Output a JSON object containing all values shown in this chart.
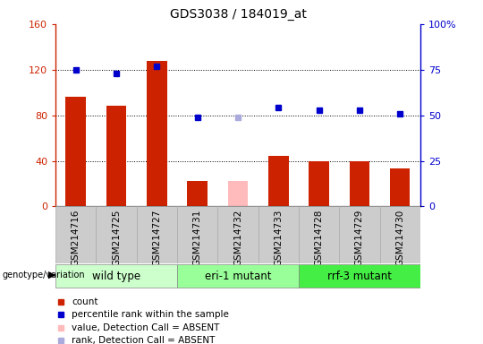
{
  "title": "GDS3038 / 184019_at",
  "samples": [
    "GSM214716",
    "GSM214725",
    "GSM214727",
    "GSM214731",
    "GSM214732",
    "GSM214733",
    "GSM214728",
    "GSM214729",
    "GSM214730"
  ],
  "bar_values": [
    96,
    88,
    128,
    22,
    22,
    44,
    40,
    40,
    33
  ],
  "bar_colors": [
    "#cc2200",
    "#cc2200",
    "#cc2200",
    "#cc2200",
    "#ffbbbb",
    "#cc2200",
    "#cc2200",
    "#cc2200",
    "#cc2200"
  ],
  "rank_values": [
    75,
    73,
    77,
    49,
    49,
    54,
    53,
    53,
    51
  ],
  "rank_colors": [
    "#0000cc",
    "#0000cc",
    "#0000cc",
    "#0000cc",
    "#aaaadd",
    "#0000cc",
    "#0000cc",
    "#0000cc",
    "#0000cc"
  ],
  "groups": [
    {
      "label": "wild type",
      "start": 0,
      "end": 3,
      "color": "#ccffcc"
    },
    {
      "label": "eri-1 mutant",
      "start": 3,
      "end": 6,
      "color": "#99ff99"
    },
    {
      "label": "rrf-3 mutant",
      "start": 6,
      "end": 9,
      "color": "#44ee44"
    }
  ],
  "ylim_left": [
    0,
    160
  ],
  "ylim_right": [
    0,
    100
  ],
  "left_ticks": [
    0,
    40,
    80,
    120,
    160
  ],
  "right_ticks": [
    0,
    25,
    50,
    75,
    100
  ],
  "left_tick_labels": [
    "0",
    "40",
    "80",
    "120",
    "160"
  ],
  "right_tick_labels": [
    "0",
    "25",
    "50",
    "75",
    "100%"
  ],
  "grid_values": [
    40,
    80,
    120
  ],
  "bar_width": 0.5,
  "left_axis_color": "#cc2200",
  "right_axis_color": "#0000cc",
  "bg_color": "#ffffff",
  "legend_items": [
    {
      "label": "count",
      "color": "#cc2200"
    },
    {
      "label": "percentile rank within the sample",
      "color": "#0000cc"
    },
    {
      "label": "value, Detection Call = ABSENT",
      "color": "#ffbbbb"
    },
    {
      "label": "rank, Detection Call = ABSENT",
      "color": "#aaaadd"
    }
  ],
  "cell_bg": "#cccccc",
  "cell_border": "#aaaaaa"
}
